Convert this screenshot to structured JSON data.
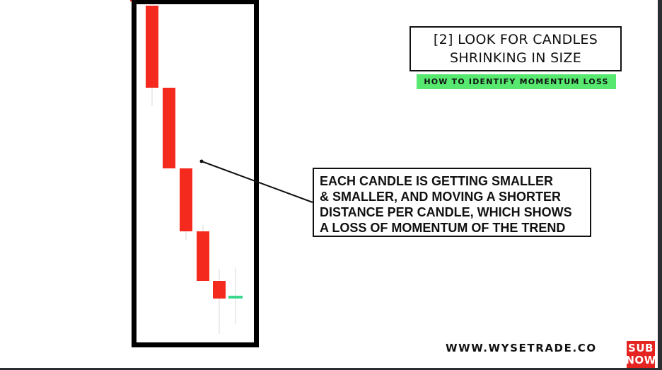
{
  "title": {
    "lines": [
      "[2] LOOK FOR CANDLES",
      "SHRINKING IN SIZE"
    ]
  },
  "subtitle": "HOW TO IDENTIFY MOMENTUM LOSS",
  "callout": {
    "lines": [
      "EACH CANDLE IS GETTING SMALLER",
      "& SMALLER, AND MOVING A SHORTER",
      "DISTANCE PER CANDLE, WHICH SHOWS",
      "A LOSS OF MOMENTUM OF THE TREND"
    ]
  },
  "footer": {
    "site": "WWW.WYSETRADE.CO",
    "badge_lines": [
      "SUB",
      "NOW"
    ]
  },
  "colors": {
    "bearish": "#f52a1e",
    "bullish": "#3ad78c",
    "highlight_frame": "#000000",
    "banner": "#56e86f",
    "badge": "#e52421"
  },
  "chart_data": {
    "type": "candlestick",
    "candles": [
      {
        "direction": "down",
        "size_rank": 1
      },
      {
        "direction": "down",
        "size_rank": 2
      },
      {
        "direction": "down",
        "size_rank": 3
      },
      {
        "direction": "down",
        "size_rank": 4
      },
      {
        "direction": "down",
        "size_rank": 5
      },
      {
        "direction": "up",
        "size_rank": 6
      }
    ]
  }
}
